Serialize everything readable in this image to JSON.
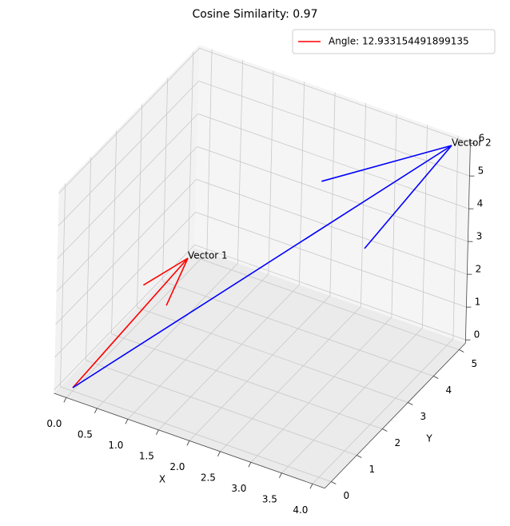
{
  "chart_data": {
    "type": "quiver3d",
    "title": "Cosine Similarity: 0.97",
    "xlabel": "X",
    "ylabel": "Y",
    "series": [
      {
        "name": "Vector 1",
        "color": "red",
        "values": [
          1,
          2,
          3
        ]
      },
      {
        "name": "Vector 2",
        "color": "blue",
        "values": [
          4,
          5,
          6
        ]
      }
    ],
    "legend": {
      "label": "Angle: 12.933154491899135",
      "color": "red",
      "loc": "upper right"
    },
    "xlim": [
      -0.2,
      4.2
    ],
    "ylim": [
      -0.25,
      5.25
    ],
    "zlim": [
      -0.1,
      6.1
    ],
    "xticks": [
      {
        "value": 0,
        "label": "0.0"
      },
      {
        "value": 0.5,
        "label": "0.5"
      },
      {
        "value": 1,
        "label": "1.0"
      },
      {
        "value": 1.5,
        "label": "1.5"
      },
      {
        "value": 2,
        "label": "2.0"
      },
      {
        "value": 2.5,
        "label": "2.5"
      },
      {
        "value": 3,
        "label": "3.0"
      },
      {
        "value": 3.5,
        "label": "3.5"
      },
      {
        "value": 4,
        "label": "4.0"
      }
    ],
    "yticks": [
      0,
      1,
      2,
      3,
      4,
      5
    ],
    "zticks": [
      0,
      1,
      2,
      3,
      4,
      5,
      6
    ],
    "grid": true
  }
}
